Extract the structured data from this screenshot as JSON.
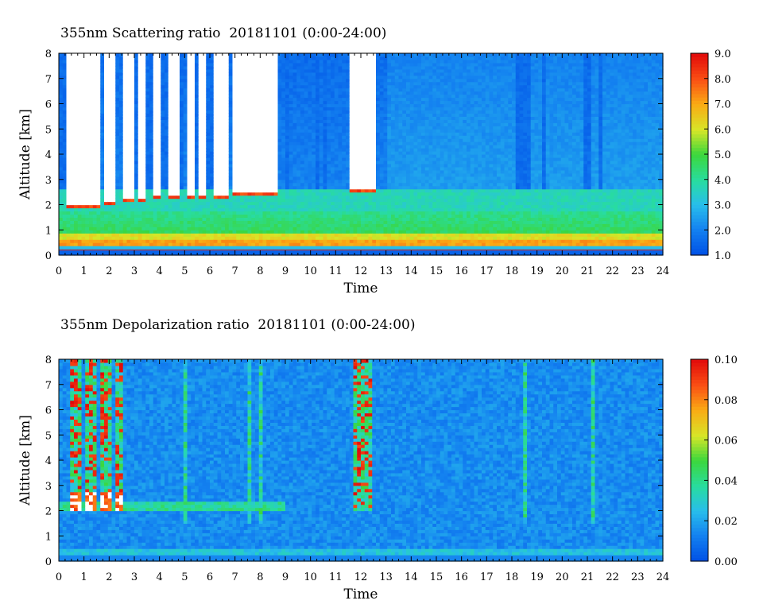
{
  "chart_data": [
    {
      "type": "heatmap",
      "title": "355nm Scattering ratio  20181101 (0:00-24:00)",
      "xlabel": "Time",
      "ylabel": "Altitude [km]",
      "xlim": [
        0,
        24
      ],
      "ylim": [
        0,
        8
      ],
      "x_ticks": [
        "0",
        "1",
        "2",
        "3",
        "4",
        "5",
        "6",
        "7",
        "8",
        "9",
        "10",
        "11",
        "12",
        "13",
        "14",
        "15",
        "16",
        "17",
        "18",
        "19",
        "20",
        "21",
        "22",
        "23",
        "24"
      ],
      "y_ticks": [
        "0",
        "1",
        "2",
        "3",
        "4",
        "5",
        "6",
        "7",
        "8"
      ],
      "colorbar": {
        "min": 1.0,
        "max": 9.0,
        "ticks": [
          "1.0",
          "2.0",
          "3.0",
          "4.0",
          "5.0",
          "6.0",
          "7.0",
          "8.0",
          "9.0"
        ]
      },
      "grid": false,
      "cloud_intervals_h": [
        [
          0.3,
          1.6
        ],
        [
          1.75,
          2.25
        ],
        [
          2.55,
          3.0
        ],
        [
          3.2,
          3.5
        ],
        [
          3.7,
          4.1
        ],
        [
          4.35,
          4.85
        ],
        [
          5.05,
          5.4
        ],
        [
          5.6,
          5.9
        ],
        [
          6.15,
          6.8
        ],
        [
          6.95,
          8.7
        ],
        [
          11.6,
          12.6
        ]
      ],
      "cloud_base_km": [
        [
          0.3,
          1.85
        ],
        [
          1.75,
          2.0
        ],
        [
          2.55,
          2.1
        ],
        [
          3.2,
          2.15
        ],
        [
          3.7,
          2.2
        ],
        [
          4.35,
          2.2
        ],
        [
          5.05,
          2.25
        ],
        [
          5.6,
          2.3
        ],
        [
          6.15,
          2.3
        ],
        [
          6.95,
          2.35
        ],
        [
          8.0,
          2.4
        ],
        [
          11.6,
          2.5
        ]
      ],
      "aerosol_layer_top_km": 1.7,
      "ground_line_km": 0.2,
      "dense_columns_h": [
        0.15,
        2.15,
        3.1,
        3.6,
        4.2,
        4.9,
        5.45,
        6.0,
        9.1,
        10.3,
        10.6,
        18.3,
        18.6,
        19.3,
        21.0,
        21.5
      ]
    },
    {
      "type": "heatmap",
      "title": "355nm Depolarization ratio  20181101 (0:00-24:00)",
      "xlabel": "Time",
      "ylabel": "Altitude [km]",
      "xlim": [
        0,
        24
      ],
      "ylim": [
        0,
        8
      ],
      "x_ticks": [
        "0",
        "1",
        "2",
        "3",
        "4",
        "5",
        "6",
        "7",
        "8",
        "9",
        "10",
        "11",
        "12",
        "13",
        "14",
        "15",
        "16",
        "17",
        "18",
        "19",
        "20",
        "21",
        "22",
        "23",
        "24"
      ],
      "y_ticks": [
        "0",
        "1",
        "2",
        "3",
        "4",
        "5",
        "6",
        "7",
        "8"
      ],
      "colorbar": {
        "min": 0.0,
        "max": 0.1,
        "ticks": [
          "0.00",
          "0.02",
          "0.04",
          "0.06",
          "0.08",
          "0.10"
        ]
      },
      "grid": false,
      "high_depol_columns_h": [
        [
          0.5,
          0.95
        ],
        [
          1.1,
          1.5
        ],
        [
          1.65,
          2.05
        ],
        [
          2.2,
          2.5
        ],
        [
          11.7,
          12.5
        ]
      ],
      "depol_streaks_h": [
        5.0,
        7.6,
        8.0,
        18.5,
        21.2
      ],
      "cloud_band_km": [
        2.0,
        2.4
      ],
      "near_ground_band_km": [
        0.2,
        0.5
      ]
    }
  ]
}
